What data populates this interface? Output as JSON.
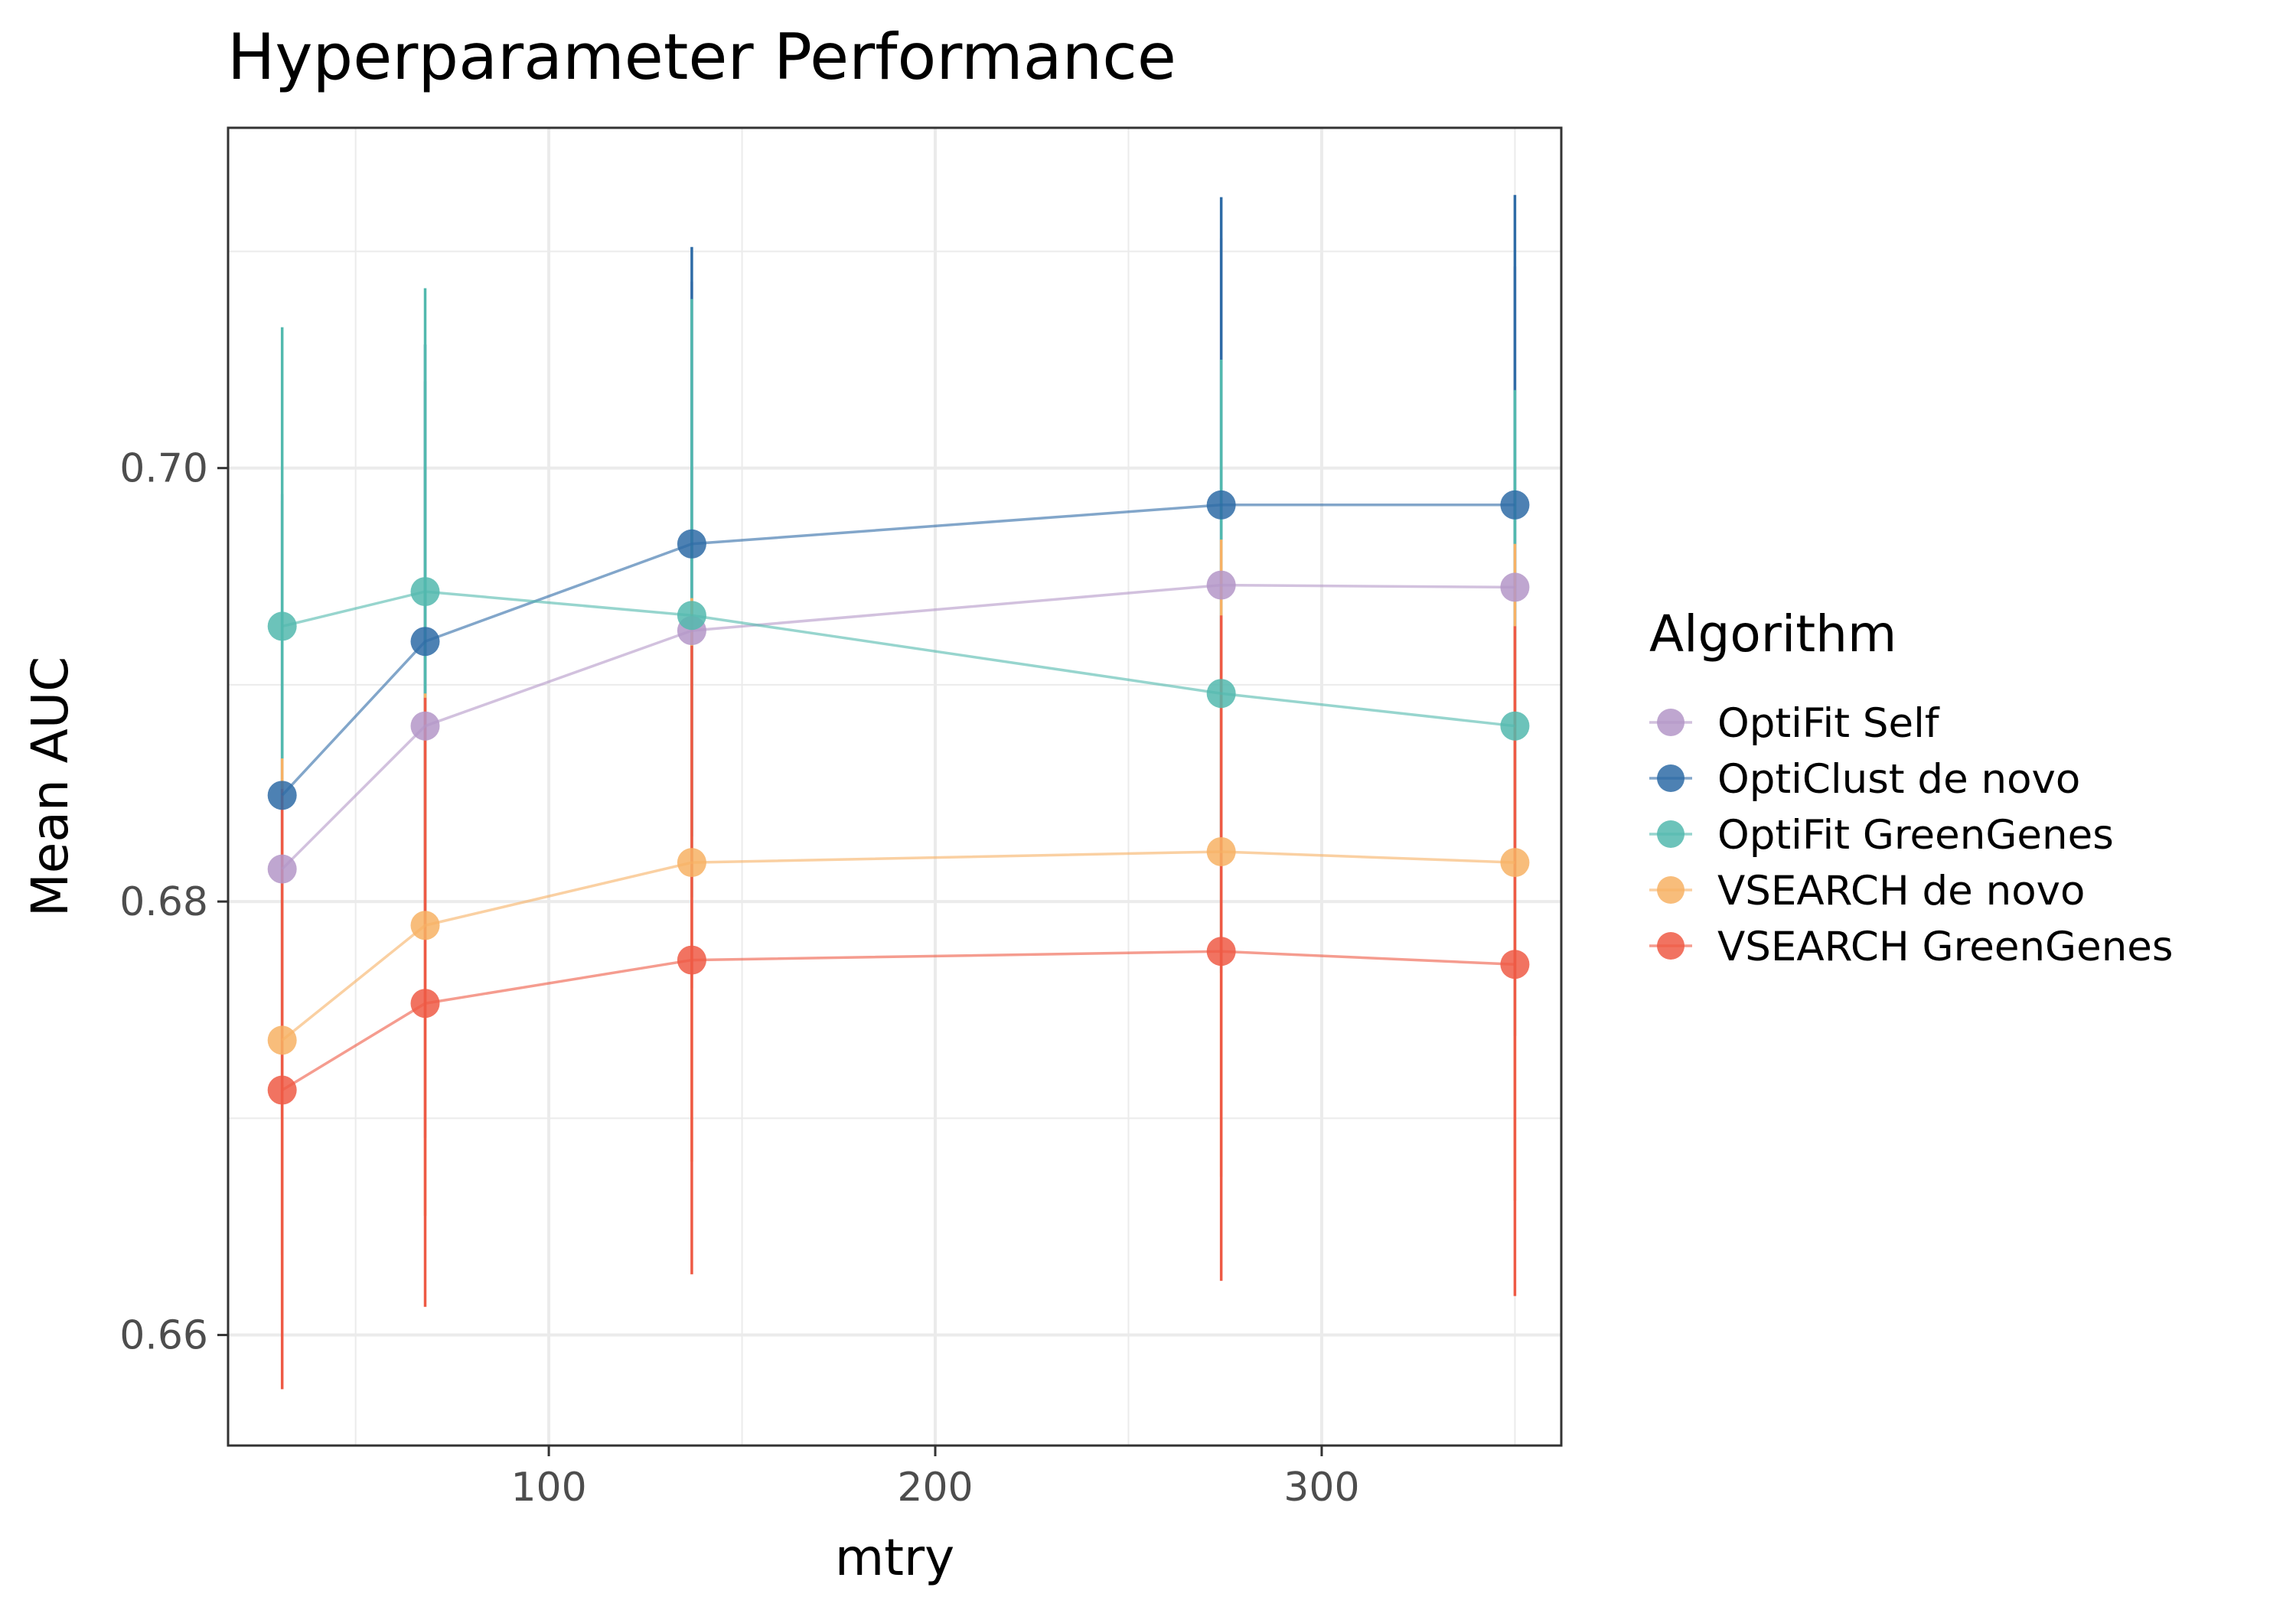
{
  "chart_data": {
    "type": "line",
    "title": "Hyperparameter Performance",
    "xlabel": "mtry",
    "ylabel": "Mean AUC",
    "xlim": [
      17,
      362
    ],
    "ylim": [
      0.6549,
      0.7157
    ],
    "x_ticks": [
      100,
      200,
      300
    ],
    "x_tick_labels": [
      "100",
      "200",
      "300"
    ],
    "x_minor_ticks": [
      50,
      150,
      250,
      350
    ],
    "y_ticks": [
      0.66,
      0.68,
      0.7
    ],
    "y_tick_labels": [
      "0.66",
      "0.68",
      "0.70"
    ],
    "y_minor_ticks": [
      0.67,
      0.69,
      0.71
    ],
    "grid": true,
    "legend": {
      "title": "Algorithm",
      "position": "right"
    },
    "x": [
      31,
      68,
      137,
      274,
      350
    ],
    "series": [
      {
        "name": "OptiFit Self",
        "color": "#B497C8",
        "values": [
          0.6815,
          0.6881,
          0.6925,
          0.6946,
          0.6945
        ],
        "err_low": [
          0.6637,
          0.6691,
          0.676,
          0.6775,
          0.6767
        ],
        "err_high": [
          0.6985,
          0.704,
          0.7086,
          0.7106,
          0.7093
        ]
      },
      {
        "name": "OptiClust de novo",
        "color": "#2E6BA6",
        "values": [
          0.6849,
          0.692,
          0.6965,
          0.6983,
          0.6983
        ],
        "err_low": [
          0.67,
          0.6788,
          0.683,
          0.6823,
          0.6813
        ],
        "err_high": [
          0.6988,
          0.7057,
          0.7102,
          0.7125,
          0.7126
        ]
      },
      {
        "name": "OptiFit GreenGenes",
        "color": "#52B9AE",
        "values": [
          0.6927,
          0.6943,
          0.6932,
          0.6896,
          0.6881
        ],
        "err_low": [
          0.6785,
          0.6812,
          0.6802,
          0.6767,
          0.6738
        ],
        "err_high": [
          0.7065,
          0.7083,
          0.7078,
          0.705,
          0.7036
        ]
      },
      {
        "name": "VSEARCH de novo",
        "color": "#F7B164",
        "values": [
          0.6736,
          0.6789,
          0.6818,
          0.6823,
          0.6818
        ],
        "err_low": [
          0.6607,
          0.6655,
          0.668,
          0.6673,
          0.6662
        ],
        "err_high": [
          0.6866,
          0.6896,
          0.694,
          0.6967,
          0.6965
        ]
      },
      {
        "name": "VSEARCH GreenGenes",
        "color": "#EE5A45",
        "values": [
          0.6713,
          0.6753,
          0.6773,
          0.6777,
          0.6771
        ],
        "err_low": [
          0.6575,
          0.6613,
          0.6628,
          0.6625,
          0.6618
        ],
        "err_high": [
          0.6852,
          0.6894,
          0.6918,
          0.6932,
          0.6927
        ]
      }
    ]
  }
}
